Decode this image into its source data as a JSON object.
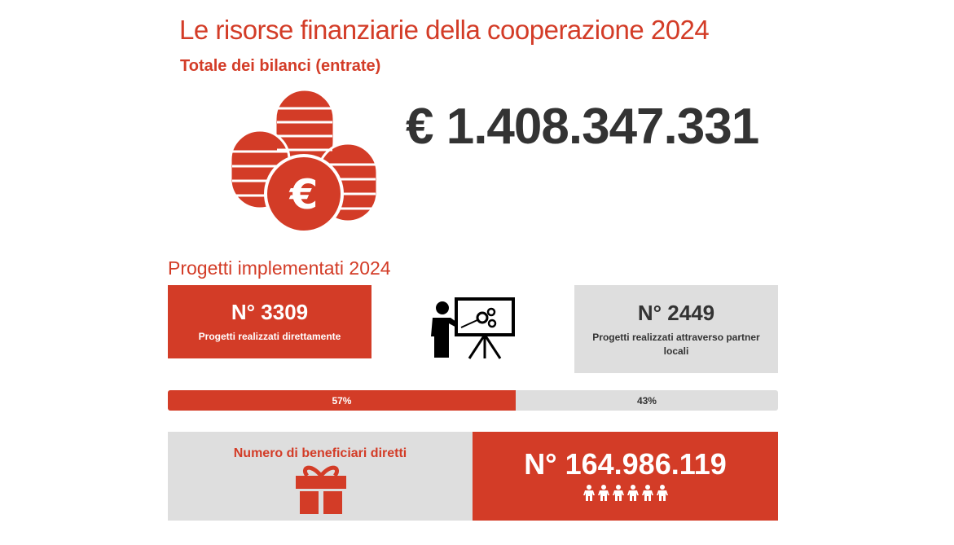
{
  "header": {
    "title": "Le risorse finanziarie della cooperazione 2024",
    "subtitle": "Totale dei bilanci (entrate)",
    "total": "€ 1.408.347.331"
  },
  "projects": {
    "section_title": "Progetti implementati 2024",
    "direct": {
      "count": "N° 3309",
      "label": "Progetti realizzati direttamente"
    },
    "partner": {
      "count": "N° 2449",
      "label": "Progetti realizzati attraverso partner locali"
    },
    "split": {
      "direct_percent": 57,
      "partner_percent": 43,
      "direct_label": "57%",
      "partner_label": "43%"
    }
  },
  "beneficiaries": {
    "label": "Numero di beneficiari diretti",
    "count": "N° 164.986.119"
  },
  "colors": {
    "accent": "#d33c27",
    "grey": "#dedede",
    "text": "#333333"
  }
}
